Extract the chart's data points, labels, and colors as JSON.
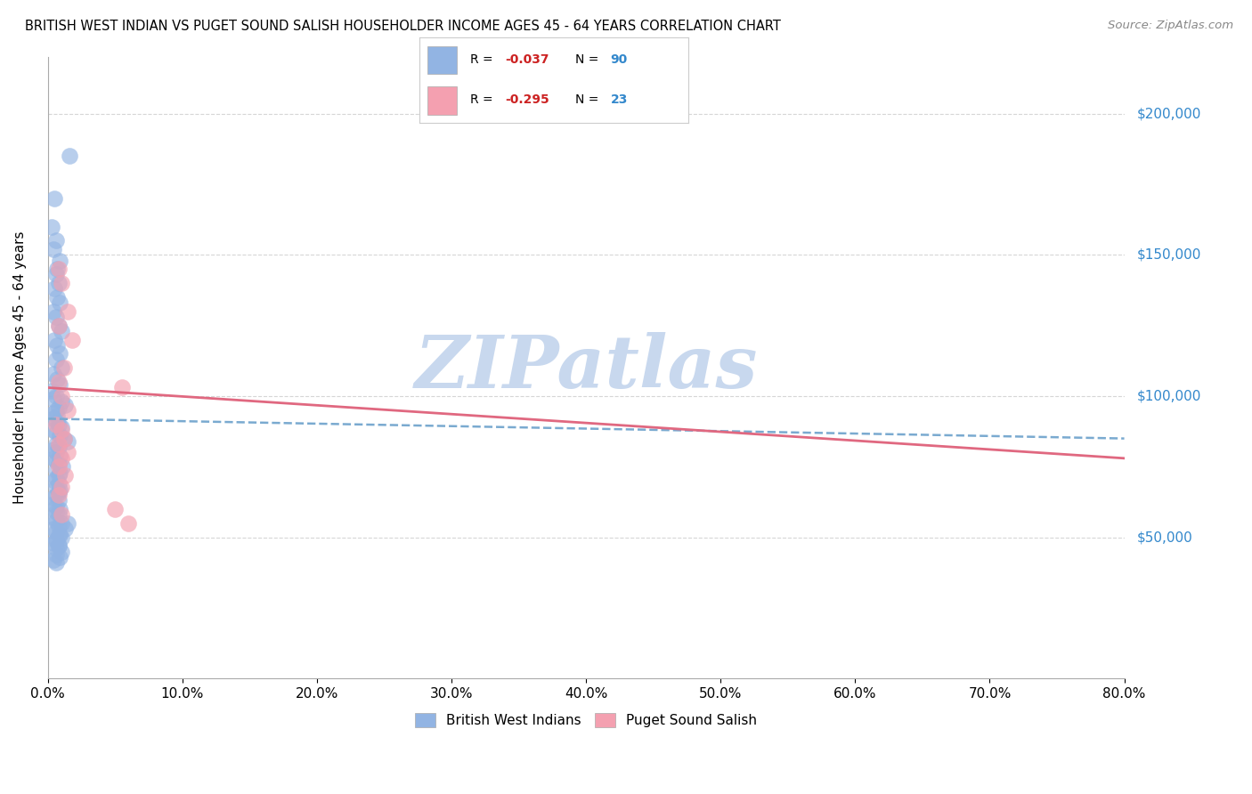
{
  "title": "BRITISH WEST INDIAN VS PUGET SOUND SALISH HOUSEHOLDER INCOME AGES 45 - 64 YEARS CORRELATION CHART",
  "source": "Source: ZipAtlas.com",
  "ylabel": "Householder Income Ages 45 - 64 years",
  "xlabel_ticks": [
    "0.0%",
    "10.0%",
    "20.0%",
    "30.0%",
    "40.0%",
    "50.0%",
    "60.0%",
    "70.0%",
    "80.0%"
  ],
  "xlabel_vals": [
    0.0,
    0.1,
    0.2,
    0.3,
    0.4,
    0.5,
    0.6,
    0.7,
    0.8
  ],
  "ytick_labels": [
    "$50,000",
    "$100,000",
    "$150,000",
    "$200,000"
  ],
  "ytick_vals": [
    50000,
    100000,
    150000,
    200000
  ],
  "xlim": [
    0.0,
    0.8
  ],
  "ylim": [
    0,
    220000
  ],
  "legend_label1": "British West Indians",
  "legend_label2": "Puget Sound Salish",
  "r1": "-0.037",
  "n1": "90",
  "r2": "-0.295",
  "n2": "23",
  "color_blue": "#92b4e3",
  "color_pink": "#f4a0b0",
  "color_line_blue": "#7aaad0",
  "color_line_pink": "#e06880",
  "watermark": "ZIPatlas",
  "watermark_color": "#c8d8ee",
  "blue_line_x": [
    0.0,
    0.8
  ],
  "blue_line_y": [
    92000,
    85000
  ],
  "pink_line_x": [
    0.0,
    0.8
  ],
  "pink_line_y": [
    103000,
    78000
  ],
  "blue_points_x": [
    0.005,
    0.016,
    0.003,
    0.006,
    0.009,
    0.004,
    0.007,
    0.006,
    0.008,
    0.005,
    0.007,
    0.009,
    0.004,
    0.006,
    0.008,
    0.01,
    0.005,
    0.007,
    0.009,
    0.006,
    0.01,
    0.004,
    0.007,
    0.009,
    0.003,
    0.006,
    0.004,
    0.01,
    0.013,
    0.008,
    0.006,
    0.004,
    0.007,
    0.004,
    0.007,
    0.008,
    0.01,
    0.004,
    0.006,
    0.009,
    0.012,
    0.015,
    0.006,
    0.008,
    0.004,
    0.006,
    0.009,
    0.004,
    0.006,
    0.008,
    0.011,
    0.006,
    0.009,
    0.008,
    0.006,
    0.005,
    0.008,
    0.006,
    0.009,
    0.008,
    0.006,
    0.004,
    0.008,
    0.004,
    0.006,
    0.009,
    0.006,
    0.008,
    0.004,
    0.006,
    0.01,
    0.008,
    0.004,
    0.006,
    0.008,
    0.01,
    0.006,
    0.004,
    0.008,
    0.006,
    0.015,
    0.013,
    0.009,
    0.006,
    0.008,
    0.01,
    0.006,
    0.009,
    0.004,
    0.006
  ],
  "blue_points_y": [
    170000,
    185000,
    160000,
    155000,
    148000,
    152000,
    145000,
    143000,
    140000,
    138000,
    135000,
    133000,
    130000,
    128000,
    125000,
    123000,
    120000,
    118000,
    115000,
    113000,
    110000,
    108000,
    106000,
    104000,
    102000,
    100000,
    99000,
    98000,
    97000,
    96000,
    95000,
    94000,
    93000,
    92000,
    91000,
    90000,
    89000,
    88000,
    87000,
    86000,
    85000,
    84000,
    83000,
    82000,
    81000,
    80000,
    79000,
    78000,
    77000,
    76000,
    75000,
    74000,
    73000,
    72000,
    71000,
    70000,
    69000,
    68000,
    67000,
    66000,
    65000,
    64000,
    63000,
    62000,
    61000,
    60000,
    59000,
    58000,
    57000,
    56000,
    55000,
    54000,
    53000,
    52000,
    51000,
    50000,
    49000,
    48000,
    47000,
    46000,
    55000,
    53000,
    51000,
    49000,
    47000,
    45000,
    44000,
    43000,
    42000,
    41000
  ],
  "pink_points_x": [
    0.008,
    0.01,
    0.015,
    0.008,
    0.018,
    0.012,
    0.008,
    0.01,
    0.015,
    0.006,
    0.01,
    0.012,
    0.008,
    0.015,
    0.01,
    0.008,
    0.013,
    0.01,
    0.008,
    0.05,
    0.01,
    0.06,
    0.055
  ],
  "pink_points_y": [
    145000,
    140000,
    130000,
    125000,
    120000,
    110000,
    105000,
    100000,
    95000,
    90000,
    88000,
    85000,
    83000,
    80000,
    78000,
    75000,
    72000,
    68000,
    65000,
    60000,
    58000,
    55000,
    103000
  ]
}
